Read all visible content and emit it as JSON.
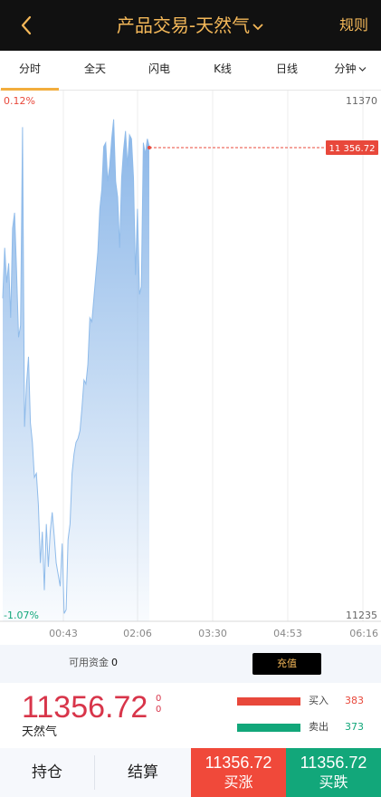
{
  "header": {
    "title": "产品交易-天然气",
    "rules_label": "规则"
  },
  "tabs": [
    {
      "label": "分时",
      "active": true
    },
    {
      "label": "全天",
      "active": false
    },
    {
      "label": "闪电",
      "active": false
    },
    {
      "label": "K线",
      "active": false
    },
    {
      "label": "日线",
      "active": false
    },
    {
      "label": "分钟",
      "active": false
    }
  ],
  "chart_data": {
    "type": "area",
    "y_axis": {
      "max_label": "11370",
      "min_label": "11235",
      "ylim": [
        11235,
        11370
      ]
    },
    "pct_labels": {
      "top": "0.12%",
      "bottom": "-1.07%"
    },
    "x_ticks": [
      "00:43",
      "02:06",
      "03:30",
      "04:53",
      "06:16"
    ],
    "current_price_label": "11 356.72",
    "current_value": 11356.72,
    "series_color": "#8fbbea",
    "values": [
      11318,
      11331,
      11322,
      11327,
      11313,
      11336,
      11340,
      11325,
      11308,
      11311,
      11362,
      11285,
      11296,
      11303,
      11286,
      11281,
      11272,
      11273,
      11265,
      11250,
      11258,
      11243,
      11260,
      11249,
      11258,
      11263,
      11257,
      11250,
      11247,
      11244,
      11255,
      11237,
      11238,
      11256,
      11260,
      11273,
      11278,
      11281,
      11282,
      11284,
      11290,
      11297,
      11296,
      11301,
      11313,
      11312,
      11318,
      11324,
      11330,
      11341,
      11346,
      11357,
      11358,
      11348,
      11352,
      11359,
      11364,
      11348,
      11344,
      11331,
      11349,
      11356,
      11361,
      11352,
      11360,
      11359,
      11349,
      11324,
      11341,
      11319,
      11321,
      11358,
      11355,
      11359,
      11357
    ]
  },
  "funds": {
    "label": "可用资金",
    "value": "0",
    "recharge_label": "充值"
  },
  "quote": {
    "price": "11356.72",
    "change_top": "0",
    "change_bottom": "0",
    "product_name": "天然气",
    "buy_label": "买入",
    "buy_volume": "383",
    "sell_label": "卖出",
    "sell_volume": "373"
  },
  "bottom": {
    "positions_label": "持仓",
    "settle_label": "结算",
    "buy_up_price": "11356.72",
    "buy_up_label": "买涨",
    "buy_down_price": "11356.72",
    "buy_down_label": "买跌"
  },
  "colors": {
    "header_bg": "#111111",
    "accent": "#f4b859",
    "up_red": "#e8483b",
    "down_green": "#12a77a",
    "price_red": "#d8354a"
  }
}
